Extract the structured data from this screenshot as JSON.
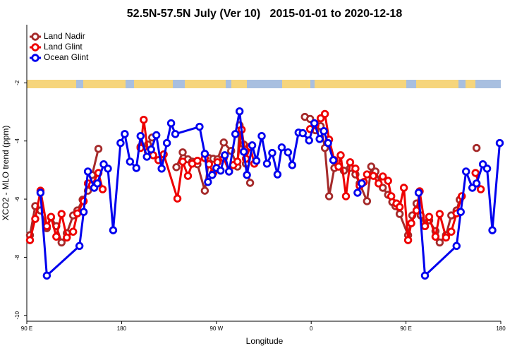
{
  "chart_data": {
    "type": "line",
    "title": "52.5N-57.5N July (Ver 10)   2015-01-01 to 2020-12-18",
    "xlabel": "Longitude",
    "ylabel": "XCO2 - MLO trend (ppm)",
    "xlim": [
      90,
      540
    ],
    "xticks": [
      {
        "value": 90,
        "label": "90 E"
      },
      180,
      {
        "value": 270,
        "label": "90 W"
      },
      {
        "value": 360,
        "label": "0"
      },
      {
        "value": 450,
        "label": "90 E"
      },
      {
        "value": 540,
        "label": "180"
      }
    ],
    "ylim": [
      -10.2,
      0
    ],
    "yticks": [
      -2,
      -4,
      -6,
      -8,
      -10
    ],
    "legend": "upper left",
    "series": [
      {
        "name": "Land Nadir",
        "color": "#a52a2a",
        "x": [
          93,
          98,
          103,
          109,
          113,
          118,
          123,
          128,
          134,
          138,
          143,
          148,
          152,
          158,
          null,
          198,
          205,
          209,
          null,
          232,
          238,
          243,
          247,
          252,
          259,
          263,
          267,
          271,
          277,
          284,
          290,
          292,
          296,
          298,
          302,
          null,
          354,
          359,
          364,
          369,
          373,
          377,
          382,
          386,
          391,
          397,
          402,
          406,
          413,
          417,
          421,
          428,
          433,
          437,
          440,
          444,
          452,
          456,
          460,
          464,
          468,
          472,
          478,
          482,
          488,
          493,
          498,
          501,
          null,
          517
        ],
        "values": [
          -7.24,
          -6.24,
          -6.39,
          -7.0,
          -6.63,
          -6.93,
          -7.49,
          -7.17,
          -6.56,
          -6.39,
          -6.02,
          -5.71,
          -5.17,
          -4.27,
          null,
          -4.2,
          -4.12,
          -3.88,
          null,
          -4.9,
          -4.39,
          -4.63,
          -4.71,
          -4.8,
          -5.71,
          -4.59,
          -4.61,
          -4.63,
          -4.05,
          -4.34,
          -4.88,
          -3.46,
          -4.12,
          -4.78,
          -5.44,
          null,
          -3.17,
          -3.24,
          -3.63,
          -3.49,
          -4.24,
          -5.9,
          -4.93,
          -4.88,
          -5.02,
          -4.93,
          -5.15,
          -5.46,
          -6.07,
          -4.88,
          -5.05,
          -5.61,
          -5.85,
          -6.1,
          -6.24,
          -6.51,
          -7.24,
          -6.56,
          -6.15,
          -6.56,
          -6.93,
          -6.73,
          -7.1,
          -7.49,
          -7.24,
          -6.56,
          -6.39,
          -6.02,
          null,
          -4.24
        ]
      },
      {
        "name": "Land Glint",
        "color": "#ee0000",
        "x": [
          93,
          98,
          103,
          109,
          113,
          118,
          123,
          128,
          134,
          138,
          144,
          148,
          152,
          158,
          162,
          null,
          198,
          201,
          205,
          210,
          215,
          220,
          233,
          238,
          243,
          247,
          252,
          259,
          263,
          267,
          271,
          277,
          282,
          286,
          290,
          294,
          298,
          302,
          306,
          null,
          359,
          364,
          369,
          373,
          377,
          382,
          386,
          388,
          393,
          397,
          402,
          406,
          410,
          413,
          419,
          424,
          428,
          433,
          436,
          441,
          444,
          448,
          452,
          455,
          460,
          463,
          468,
          472,
          478,
          482,
          488,
          493,
          498,
          503,
          null,
          516,
          521
        ],
        "values": [
          -7.41,
          -6.68,
          -5.71,
          -6.93,
          -6.61,
          -7.29,
          -6.51,
          -7.32,
          -7.12,
          -6.49,
          -6.07,
          -5.46,
          -5.51,
          -5.1,
          -5.66,
          null,
          -4.24,
          -3.27,
          -4.37,
          -4.49,
          -4.66,
          -4.46,
          -5.98,
          -4.71,
          -5.2,
          -4.78,
          -4.68,
          -4.59,
          -4.8,
          -5.1,
          -4.73,
          -4.59,
          -5.05,
          -4.83,
          -4.71,
          -3.61,
          -4.61,
          -4.2,
          -4.78,
          null,
          -3.59,
          -3.46,
          -3.22,
          -3.07,
          -3.95,
          -4.66,
          -4.88,
          -4.49,
          -5.9,
          -4.73,
          -4.95,
          -5.54,
          -5.41,
          -5.15,
          -5.2,
          -5.46,
          -5.22,
          -5.37,
          -5.9,
          -6.15,
          -6.27,
          -5.61,
          -7.41,
          -6.83,
          -6.39,
          -5.73,
          -6.93,
          -6.61,
          -7.29,
          -6.51,
          -7.32,
          -7.12,
          -6.49,
          -5.9,
          null,
          -5.1,
          -5.66
        ]
      },
      {
        "name": "Ocean Glint",
        "color": "#0000ee",
        "x": [
          103,
          109,
          140,
          144,
          148,
          154,
          157,
          163,
          167,
          172,
          179,
          183,
          188,
          194,
          198,
          204,
          208,
          213,
          218,
          223,
          227,
          231,
          254,
          259,
          262,
          266,
          270,
          274,
          278,
          282,
          288,
          292,
          296,
          299,
          304,
          308,
          313,
          318,
          323,
          328,
          332,
          338,
          342,
          348,
          352,
          358,
          363,
          368,
          372,
          376,
          381,
          null,
          404,
          408,
          null,
          462,
          468,
          498,
          502,
          507,
          513,
          517,
          523,
          527,
          532,
          539
        ],
        "values": [
          -5.78,
          -8.63,
          -7.61,
          -6.44,
          -5.05,
          -5.61,
          -5.46,
          -4.8,
          -4.95,
          -7.07,
          -4.07,
          -3.76,
          -4.71,
          -4.93,
          -3.83,
          -4.54,
          -4.29,
          -3.8,
          -4.95,
          -4.07,
          -3.39,
          -3.76,
          -3.51,
          -4.44,
          -5.41,
          -5.17,
          -4.93,
          -5.02,
          -4.49,
          -5.05,
          -3.76,
          -2.98,
          -4.37,
          -5.17,
          -4.15,
          -4.68,
          -3.83,
          -4.78,
          -4.41,
          -5.15,
          -4.22,
          -4.39,
          -4.83,
          -3.71,
          -3.73,
          -3.98,
          -3.39,
          -3.93,
          -3.66,
          -4.07,
          -4.66,
          null,
          -5.78,
          -5.46,
          null,
          -5.78,
          -8.63,
          -7.61,
          -6.44,
          -5.05,
          -5.61,
          -5.46,
          -4.8,
          -4.95,
          -7.07,
          -4.07
        ]
      }
    ]
  }
}
